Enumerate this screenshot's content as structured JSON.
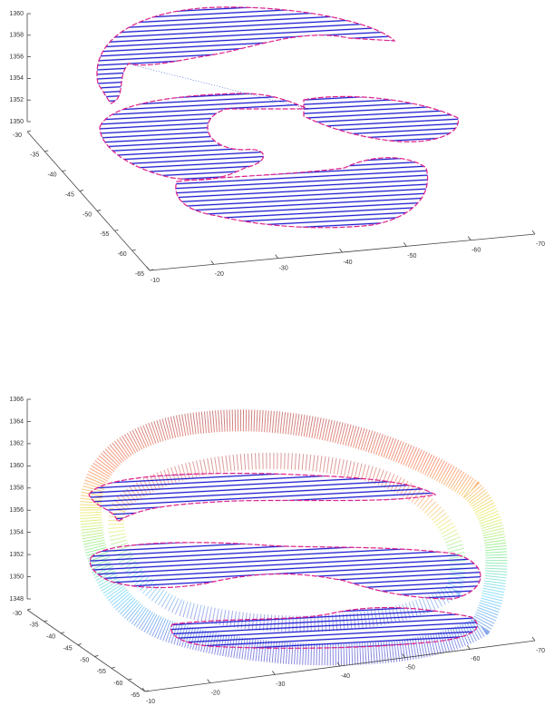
{
  "chart_data": [
    {
      "type": "3d-line",
      "zlim": [
        1350,
        1360
      ],
      "zticks": [
        1350,
        1352,
        1354,
        1356,
        1358,
        1360
      ],
      "ylim": [
        -65,
        -30
      ],
      "yticks": [
        -65,
        -60,
        -55,
        -50,
        -45,
        -40,
        -35,
        -30
      ],
      "xlim": [
        -70,
        -10
      ],
      "xticks": [
        -70,
        -60,
        -50,
        -40,
        -30,
        -20,
        -10
      ]
    },
    {
      "type": "3d-line",
      "zlim": [
        1348,
        1366
      ],
      "zticks": [
        1348,
        1350,
        1352,
        1354,
        1356,
        1358,
        1360,
        1362,
        1364,
        1366
      ],
      "ylim": [
        -65,
        -30
      ],
      "yticks": [
        -65,
        -60,
        -55,
        -50,
        -45,
        -40,
        -35,
        -30
      ],
      "xlim": [
        -70,
        -10
      ],
      "xticks": [
        -70,
        -60,
        -50,
        -40,
        -30,
        -20,
        -10
      ]
    }
  ]
}
